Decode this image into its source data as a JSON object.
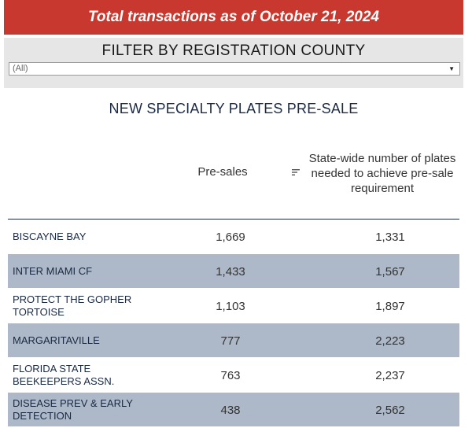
{
  "banner": {
    "title": "Total transactions as of October 21, 2024"
  },
  "filter": {
    "label": "FILTER BY REGISTRATION COUNTY",
    "selected": "(All)",
    "arrow_icon": "triangle-down"
  },
  "page_title": "NEW SPECIALTY PLATES PRE-SALE",
  "columns": {
    "presales": "Pre-sales",
    "statewide": "State-wide number of plates needed to achieve pre-sale requirement",
    "sort_icon": "sort-descending"
  },
  "colors": {
    "banner": "#c8382e",
    "row_alt": "#adb8c8",
    "text_dark": "#1a2a44"
  },
  "rows": [
    {
      "name": "BISCAYNE BAY",
      "presales": "1,669",
      "needed": "1,331"
    },
    {
      "name": "INTER MIAMI CF",
      "presales": "1,433",
      "needed": "1,567"
    },
    {
      "name": "PROTECT THE GOPHER TORTOISE",
      "presales": "1,103",
      "needed": "1,897"
    },
    {
      "name": "MARGARITAVILLE",
      "presales": "777",
      "needed": "2,223"
    },
    {
      "name": "FLORIDA STATE BEEKEEPERS ASSN.",
      "presales": "763",
      "needed": "2,237"
    },
    {
      "name": "DISEASE PREV & EARLY DETECTION",
      "presales": "438",
      "needed": "2,562"
    }
  ]
}
